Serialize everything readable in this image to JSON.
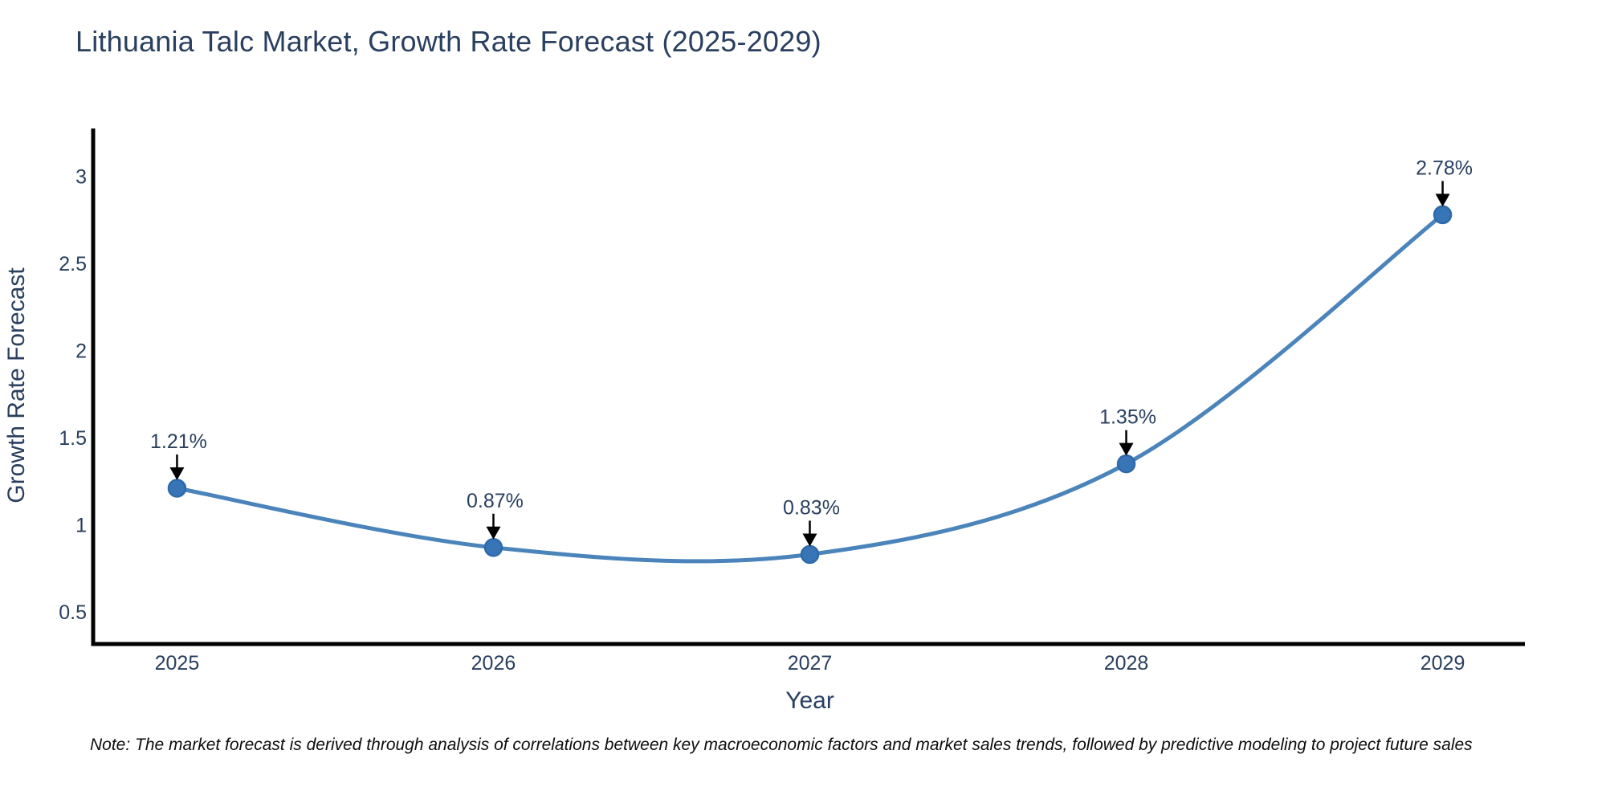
{
  "chart_data": {
    "type": "line",
    "title": "Lithuania Talc Market, Growth Rate Forecast (2025-2029)",
    "xlabel": "Year",
    "ylabel": "Growth Rate Forecast",
    "categories": [
      2025,
      2026,
      2027,
      2028,
      2029
    ],
    "series": [
      {
        "name": "Growth Rate Forecast",
        "values": [
          1.21,
          0.87,
          0.83,
          1.35,
          2.78
        ]
      }
    ],
    "point_labels": [
      "1.21%",
      "0.87%",
      "0.83%",
      "1.35%",
      "2.78%"
    ],
    "yticks": [
      0.5,
      1,
      1.5,
      2,
      2.5,
      3
    ],
    "ytick_labels": [
      "0.5",
      "1",
      "1.5",
      "2",
      "2.5",
      "3"
    ],
    "xtick_labels": [
      "2025",
      "2026",
      "2027",
      "2028",
      "2029"
    ],
    "xlim": [
      2024.74,
      2029.26
    ],
    "ylim": [
      0.325,
      3.275
    ],
    "grid": false,
    "legend": false,
    "line_shape": "spline",
    "colors": {
      "line": "#4a84ba",
      "marker_fill": "#3875b7",
      "marker_edge": "#2e6aa8",
      "axis_line": "#000000",
      "text": "#2a3f5f",
      "annotation_text": "#2a3f5f",
      "annotation_arrow": "#000000",
      "background": "#ffffff"
    }
  },
  "note": "Note: The market forecast is derived through analysis of correlations between key macroeconomic factors and market sales trends, followed by predictive modeling to project future sales"
}
